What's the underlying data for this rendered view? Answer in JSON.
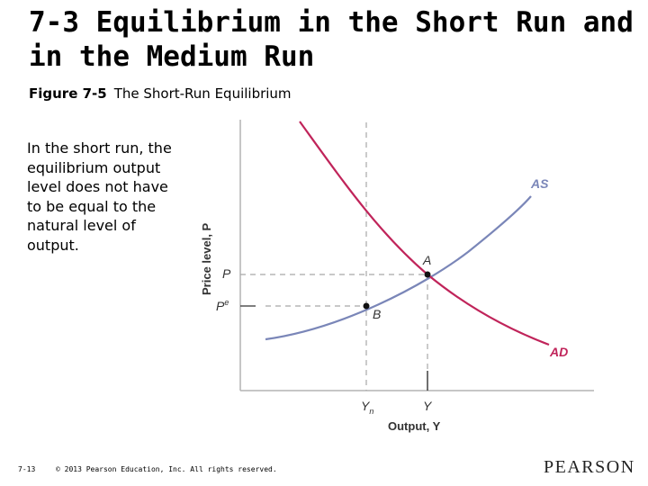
{
  "slide": {
    "title": "7-3 Equilibrium in the Short Run and in the Medium Run",
    "figure_label": "Figure 7-5",
    "figure_title": "The Short-Run Equilibrium",
    "description": "In the short run, the equilibrium output level does not have to be equal to the natural level of output."
  },
  "diagram": {
    "y_axis_label": "Price level, P",
    "x_axis_label": "Output, Y",
    "tick_P": "P",
    "tick_Pe_base": "P",
    "tick_Pe_sup": "e",
    "tick_Yn_base": "Y",
    "tick_Yn_sub": "n",
    "tick_Y": "Y",
    "curve_AS": "AS",
    "curve_AD": "AD",
    "point_A": "A",
    "point_B": "B",
    "colors": {
      "AS": "#7a86b8",
      "AD": "#c0245a",
      "axis": "#b4b4b4",
      "guide": "#a8a8a8"
    }
  },
  "footer": {
    "slide_number": "7-13",
    "copyright": "© 2013 Pearson Education, Inc. All rights reserved.",
    "logo": "PEARSON"
  }
}
